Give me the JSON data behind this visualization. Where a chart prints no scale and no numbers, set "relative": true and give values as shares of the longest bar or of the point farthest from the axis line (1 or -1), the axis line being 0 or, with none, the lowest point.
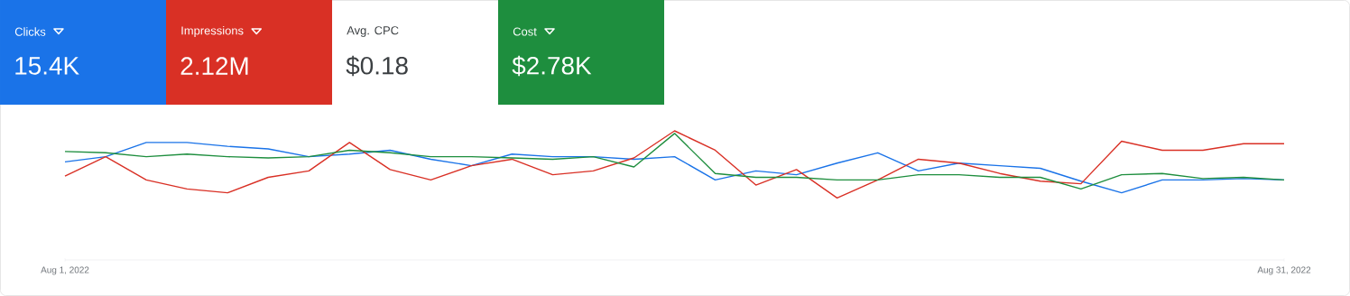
{
  "chart_data": {
    "type": "line",
    "relative": true,
    "legend": "top left",
    "x": [
      "2022-08-01",
      "2022-08-02",
      "2022-08-03",
      "2022-08-04",
      "2022-08-05",
      "2022-08-06",
      "2022-08-07",
      "2022-08-08",
      "2022-08-09",
      "2022-08-10",
      "2022-08-11",
      "2022-08-12",
      "2022-08-13",
      "2022-08-14",
      "2022-08-15",
      "2022-08-16",
      "2022-08-17",
      "2022-08-18",
      "2022-08-19",
      "2022-08-20",
      "2022-08-21",
      "2022-08-22",
      "2022-08-23",
      "2022-08-24",
      "2022-08-25",
      "2022-08-26",
      "2022-08-27",
      "2022-08-28",
      "2022-08-29",
      "2022-08-30",
      "2022-08-31"
    ],
    "xlim": [
      "2022-08-01",
      "2022-08-31"
    ],
    "xticks": [
      {
        "value": "2022-08-01",
        "label": "Aug 1, 2022"
      },
      {
        "value": "2022-08-31",
        "label": "Aug 31, 2022"
      }
    ],
    "series": [
      {
        "name": "Clicks",
        "color": "#1a73e8",
        "values": [
          0.76,
          0.8,
          0.91,
          0.91,
          0.88,
          0.86,
          0.8,
          0.82,
          0.85,
          0.78,
          0.73,
          0.82,
          0.8,
          0.8,
          0.78,
          0.8,
          0.62,
          0.69,
          0.66,
          0.75,
          0.83,
          0.69,
          0.75,
          0.73,
          0.71,
          0.61,
          0.52,
          0.62,
          0.62,
          0.63,
          0.62
        ]
      },
      {
        "name": "Impressions",
        "color": "#d93025",
        "values": [
          0.65,
          0.8,
          0.62,
          0.55,
          0.52,
          0.64,
          0.69,
          0.91,
          0.7,
          0.62,
          0.73,
          0.78,
          0.66,
          0.69,
          0.79,
          1,
          0.85,
          0.58,
          0.7,
          0.48,
          0.62,
          0.78,
          0.75,
          0.67,
          0.61,
          0.59,
          0.92,
          0.85,
          0.85,
          0.9,
          0.9
        ]
      },
      {
        "name": "Cost",
        "color": "#1e8e3e",
        "values": [
          0.84,
          0.83,
          0.8,
          0.82,
          0.8,
          0.79,
          0.8,
          0.85,
          0.83,
          0.8,
          0.8,
          0.79,
          0.78,
          0.8,
          0.72,
          0.98,
          0.67,
          0.64,
          0.64,
          0.62,
          0.62,
          0.66,
          0.66,
          0.64,
          0.64,
          0.55,
          0.66,
          0.67,
          0.63,
          0.64,
          0.62
        ]
      }
    ],
    "annotations": [
      "15.4K",
      "2.12M",
      "$2.78K",
      "Avg. CPC",
      "$0.18"
    ]
  }
}
